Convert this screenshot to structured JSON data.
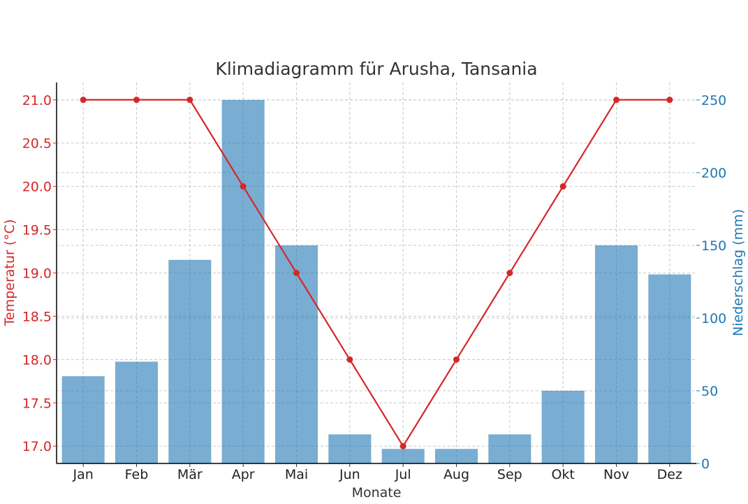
{
  "chart_data": {
    "type": "bar+line",
    "title": "Klimadiagramm für Arusha, Tansania",
    "xlabel": "Monate",
    "categories": [
      "Jan",
      "Feb",
      "Mär",
      "Apr",
      "Mai",
      "Jun",
      "Jul",
      "Aug",
      "Sep",
      "Okt",
      "Nov",
      "Dez"
    ],
    "temperature": {
      "axis_label": "Temperatur (°C)",
      "values": [
        21,
        21,
        21,
        20,
        19,
        18,
        17,
        18,
        19,
        20,
        21,
        21
      ],
      "ylim": [
        16.8,
        21.2
      ],
      "ticks": [
        "17.0",
        "17.5",
        "18.0",
        "18.5",
        "19.0",
        "19.5",
        "20.0",
        "20.5",
        "21.0"
      ],
      "color": "#d62728"
    },
    "precipitation": {
      "axis_label": "Niederschlag (mm)",
      "values": [
        60,
        70,
        140,
        250,
        150,
        20,
        10,
        10,
        20,
        50,
        150,
        130
      ],
      "ylim": [
        0,
        262
      ],
      "ticks": [
        "0",
        "50",
        "100",
        "150",
        "200",
        "250"
      ],
      "color": "#1f77b4"
    },
    "grid": true
  }
}
